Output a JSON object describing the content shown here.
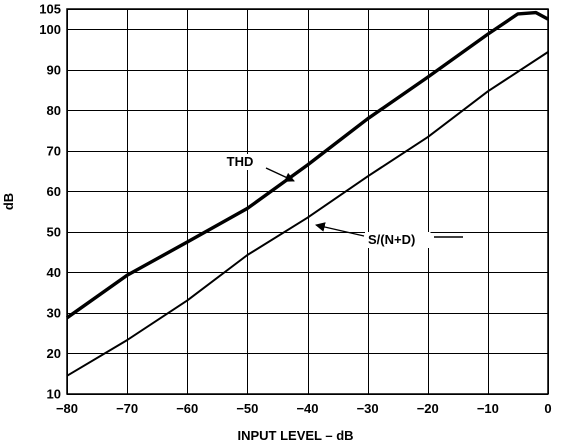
{
  "chart_data": {
    "type": "line",
    "title": "",
    "xlabel": "INPUT LEVEL – dB",
    "ylabel": "dB",
    "xlim": [
      -80,
      0
    ],
    "ylim": [
      10,
      105
    ],
    "x_ticks": [
      -80,
      -70,
      -60,
      -50,
      -40,
      -30,
      -20,
      -10,
      0
    ],
    "y_ticks": [
      10,
      20,
      30,
      40,
      50,
      60,
      70,
      80,
      90,
      100,
      105
    ],
    "grid": true,
    "series": [
      {
        "name": "THD",
        "x": [
          -80,
          -70,
          -60,
          -50,
          -40,
          -30,
          -20,
          -10,
          -5,
          -2,
          0
        ],
        "y": [
          28.8,
          39.3,
          47.5,
          55.8,
          66.5,
          77.9,
          88.2,
          98.8,
          103.8,
          104.1,
          102.5
        ]
      },
      {
        "name": "S/(N+D)",
        "x": [
          -80,
          -70,
          -60,
          -50,
          -40,
          -30,
          -20,
          -10,
          0
        ],
        "y": [
          14.5,
          23.3,
          33.1,
          44.3,
          53.5,
          63.7,
          73.4,
          84.7,
          94.4
        ]
      }
    ]
  }
}
